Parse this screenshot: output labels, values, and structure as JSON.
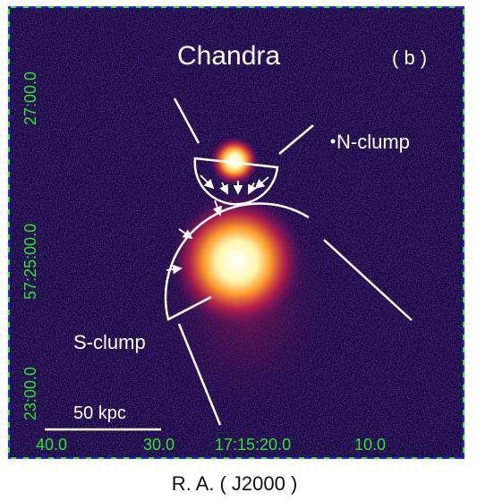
{
  "image": {
    "title": "Chandra",
    "panel": "( b )",
    "labels": [
      "N-clump",
      "S-clump"
    ],
    "scale_bar": "50 kpc"
  },
  "axes": {
    "x_ticks": [
      "40.0",
      "30.0",
      "17:15:20.0",
      "10.0"
    ],
    "y_ticks": [
      "27:00.0",
      "57:25:00.0",
      "23:00.0"
    ],
    "x_label": "R. A. ( J2000 )"
  }
}
